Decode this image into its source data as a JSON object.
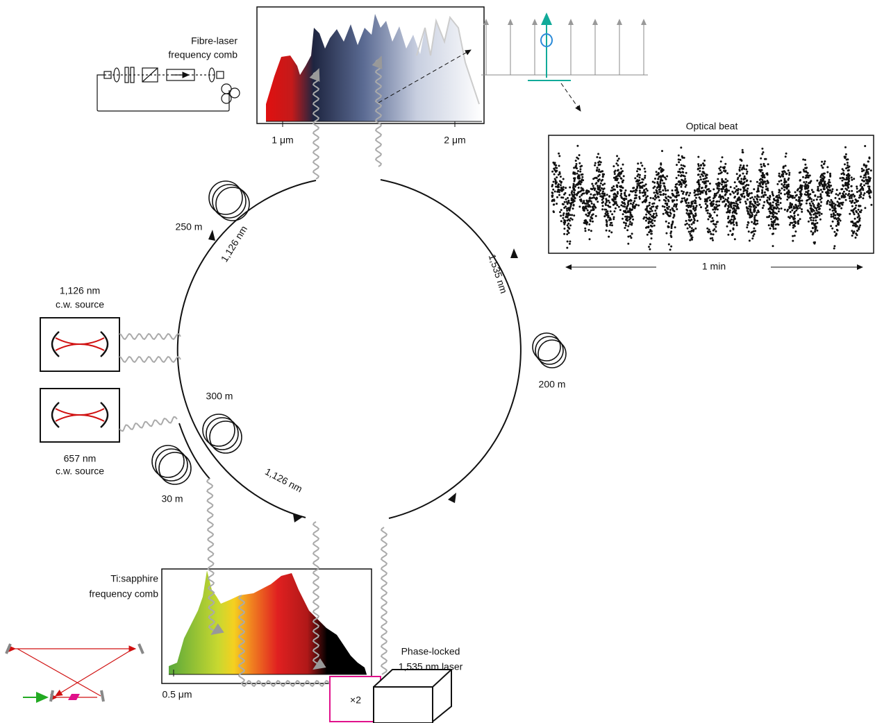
{
  "fibre_comb": {
    "title": [
      "Fibre-laser",
      "frequency comb"
    ],
    "axis_labels": [
      "1 μm",
      "2 μm"
    ]
  },
  "optical_beat": {
    "title": "Optical beat",
    "timespan": "1 min"
  },
  "sources": [
    {
      "title": [
        "1,126 nm",
        "c.w. source"
      ]
    },
    {
      "title": [
        "657 nm",
        "c.w. source"
      ]
    }
  ],
  "fibres": [
    {
      "length": "250 m"
    },
    {
      "length": "200 m"
    },
    {
      "length": "300 m"
    },
    {
      "length": "30 m"
    }
  ],
  "wavelength_labels": [
    "1,126 nm",
    "1,535 nm",
    "1,126 nm"
  ],
  "ti_sapphire_comb": {
    "title": [
      "Ti:sapphire",
      "frequency comb"
    ],
    "axis_labels": [
      "0.5 μm"
    ]
  },
  "doubler": {
    "label": "×2"
  },
  "phase_locked_laser": {
    "title": [
      "Phase-locked",
      "1,535 nm laser"
    ]
  }
}
